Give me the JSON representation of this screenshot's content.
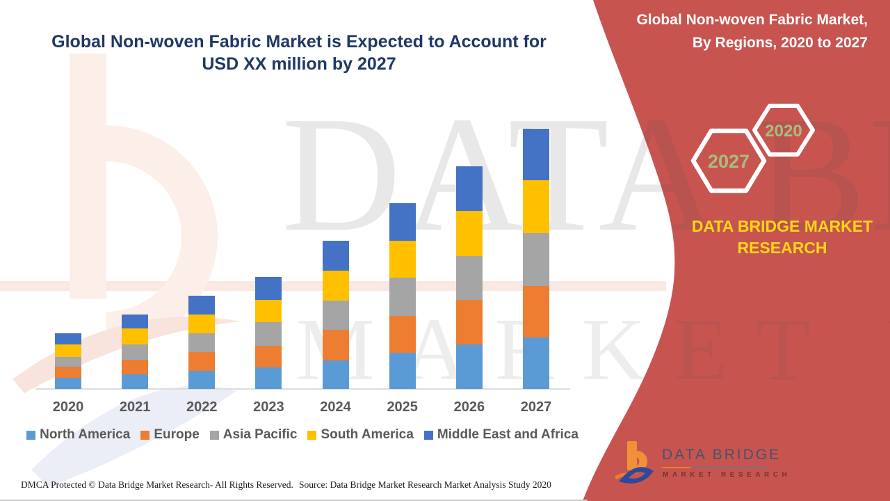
{
  "header": {
    "title_line1": "Global Non-woven Fabric Market is Expected to Account for",
    "title_line2": "USD XX million by 2027"
  },
  "side_panel": {
    "heading_line1": "Global Non-woven Fabric Market,",
    "heading_line2": "By Regions, 2020 to 2027",
    "hexagons": [
      "2027",
      "2020"
    ],
    "brand_line1": "DATA BRIDGE MARKET",
    "brand_line2": "RESEARCH",
    "panel_color": "#C85450",
    "brand_text_color": "#FFD616",
    "hexagon_text_color": "#A9BD7E"
  },
  "watermark": {
    "row1": "DATA BRIDGE",
    "row2": "MARKET RESEARCH"
  },
  "logo": {
    "name": "DATA BRIDGE",
    "subtitle": "MARKET RESEARCH"
  },
  "footer": {
    "dmca": "DMCA Protected © Data Bridge Market Research- All Rights Reserved.",
    "source": "Source: Data Bridge Market Research Market Analysis Study 2020"
  },
  "chart_data": {
    "type": "bar",
    "stacked": true,
    "title": "Global Non-woven Fabric Market is Expected to Account for USD XX million by 2027",
    "xlabel": "",
    "ylabel": "",
    "value_note": "relative units (actual values masked as USD XX million)",
    "y_axis_visible": false,
    "grid": false,
    "legend_position": "bottom",
    "categories": [
      "2020",
      "2021",
      "2022",
      "2023",
      "2024",
      "2025",
      "2026",
      "2027"
    ],
    "series": [
      {
        "name": "North America",
        "color": "#5B9BD5",
        "values": [
          16.5,
          21.5,
          26.0,
          31.5,
          41.5,
          52.0,
          64.0,
          74.5
        ]
      },
      {
        "name": "Europe",
        "color": "#ED7D31",
        "values": [
          16.0,
          21.0,
          27.5,
          31.0,
          44.0,
          53.5,
          64.0,
          74.0
        ]
      },
      {
        "name": "Asia Pacific",
        "color": "#A5A5A5",
        "values": [
          14.0,
          21.5,
          26.5,
          33.5,
          41.5,
          54.5,
          63.0,
          76.0
        ]
      },
      {
        "name": "South America",
        "color": "#FFC000",
        "values": [
          17.5,
          23.0,
          27.0,
          32.5,
          43.5,
          53.5,
          65.5,
          75.5
        ]
      },
      {
        "name": "Middle East and Africa",
        "color": "#4472C4",
        "values": [
          16.0,
          20.0,
          27.0,
          32.5,
          43.0,
          53.5,
          64.0,
          74.5
        ]
      }
    ],
    "totals": [
      80,
      107,
      134,
      161,
      213.5,
      267,
      320.5,
      374.5
    ]
  }
}
